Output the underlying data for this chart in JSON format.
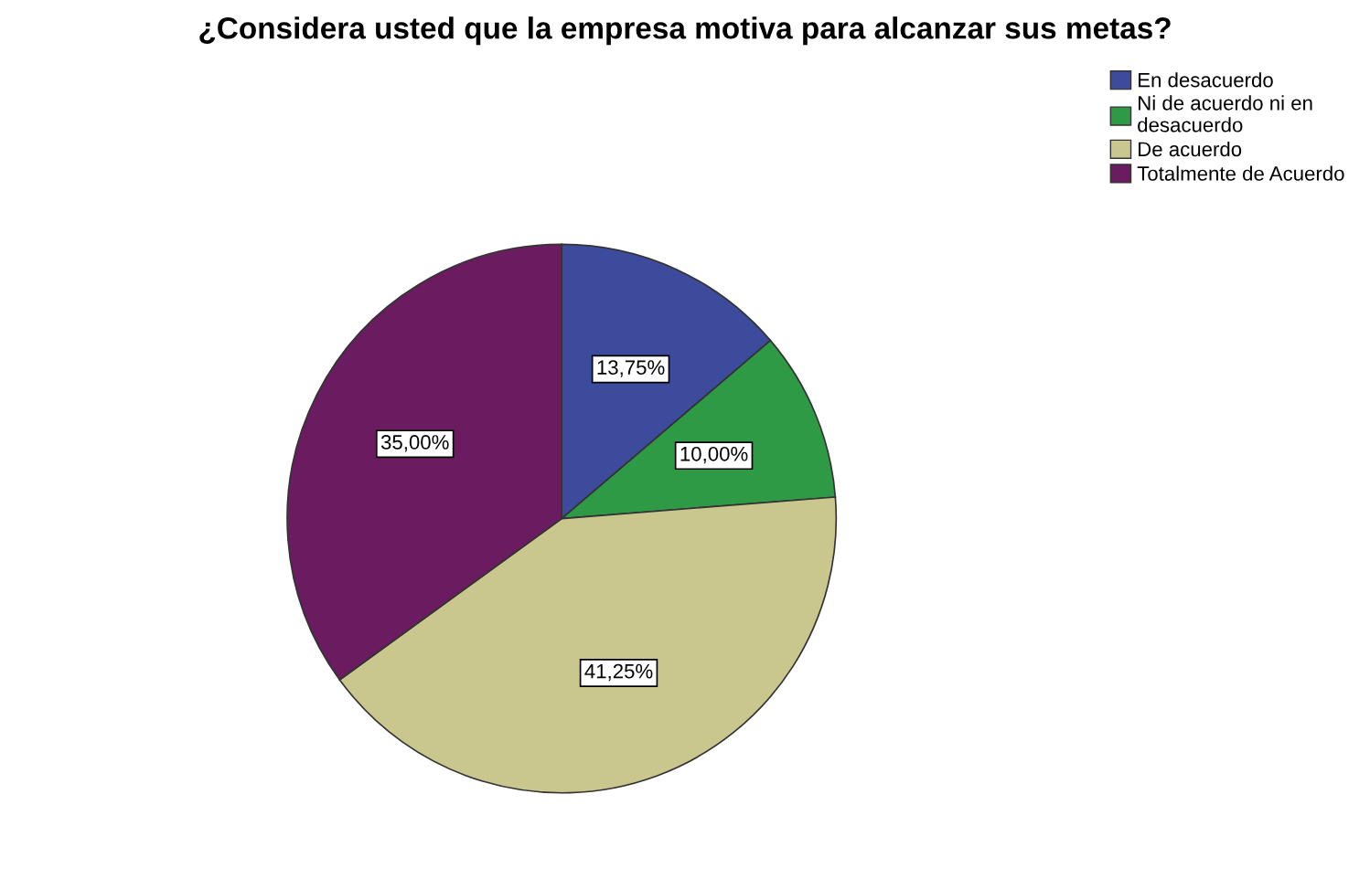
{
  "chart_data": {
    "type": "pie",
    "title": "¿Considera usted que la empresa motiva para alcanzar sus metas?",
    "categories": [
      "En desacuerdo",
      "Ni de acuerdo ni en\ndesacuerdo",
      "De acuerdo",
      "Totalmente de Acuerdo"
    ],
    "values": [
      13.75,
      10.0,
      41.25,
      35.0
    ],
    "value_labels": [
      "13,75%",
      "10,00%",
      "41,25%",
      "35,00%"
    ],
    "colors": [
      "#3d4b9c",
      "#2f9a45",
      "#c9c68e",
      "#6b1b5f"
    ],
    "legend": "top right"
  }
}
